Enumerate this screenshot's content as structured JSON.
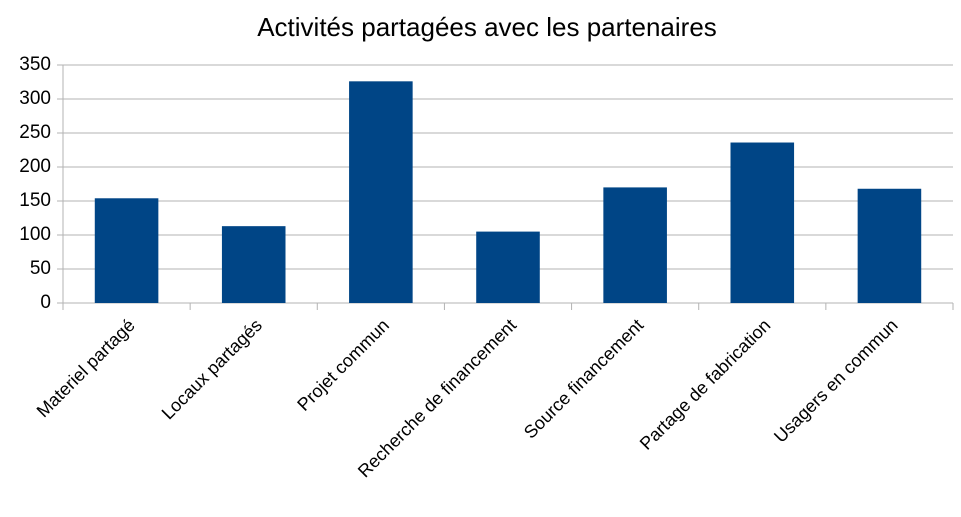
{
  "chart_data": {
    "type": "bar",
    "title": "Activités partagées avec les partenaires",
    "categories": [
      "Materiel partagé",
      "Locaux partagés",
      "Projet commun",
      "Recherche de financement",
      "Source financement",
      "Partage de fabrication",
      "Usagers en commun"
    ],
    "values": [
      154,
      113,
      326,
      105,
      170,
      236,
      168
    ],
    "color": "#004586",
    "ylim": [
      0,
      350
    ],
    "yticks": [
      0,
      50,
      100,
      150,
      200,
      250,
      300,
      350
    ],
    "grid": true
  }
}
